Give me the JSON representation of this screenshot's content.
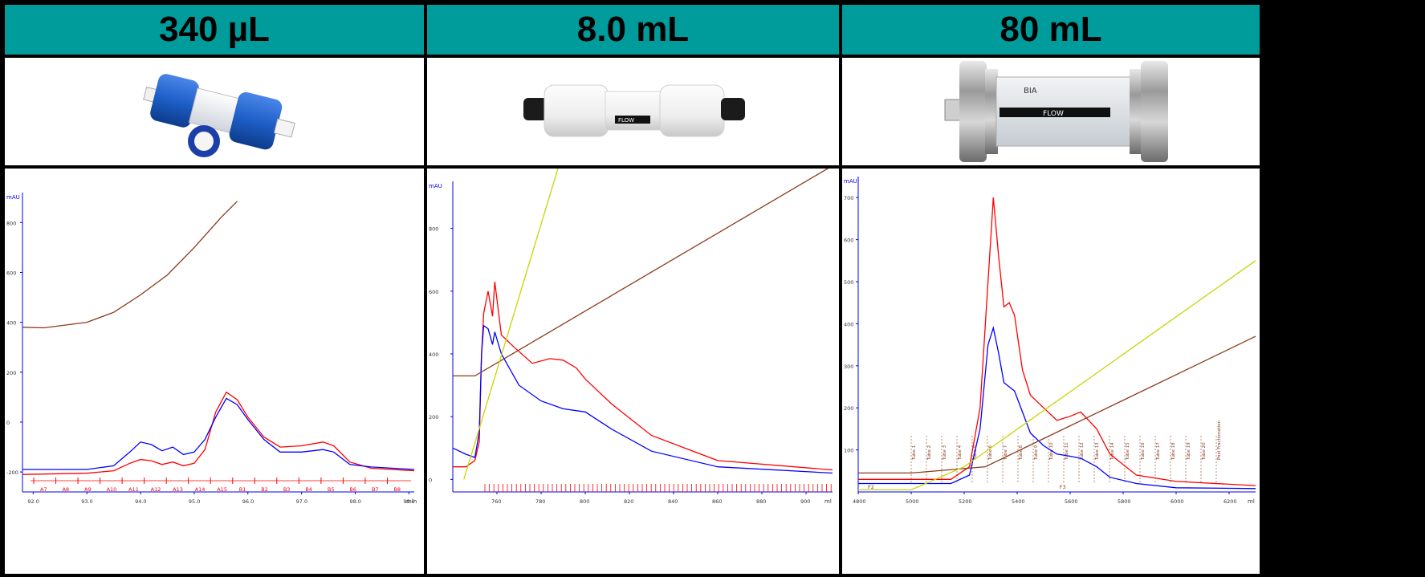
{
  "colors": {
    "header_bg": "#009B9B",
    "red": "#ff0000",
    "blue": "#0000ff",
    "brown": "#8b3a1a",
    "yellowgreen": "#c8d400",
    "axis": "#0000ee"
  },
  "columns": [
    {
      "label": "340 µL",
      "image_icon": "small-blue-column-icon"
    },
    {
      "label": "8.0 mL",
      "image_icon": "white-column-icon"
    },
    {
      "label": "80 mL",
      "image_icon": "steel-column-icon"
    }
  ],
  "photos": {
    "p2_label": "FLOW",
    "p3_label": "FLOW",
    "p3_brand": "BIA"
  },
  "chart_data": [
    {
      "type": "line",
      "yunit": "mAU",
      "xunit": "min",
      "x_ticks": [
        "92.0",
        "93.0",
        "94.0",
        "95.0",
        "96.0",
        "97.0",
        "98.0",
        "99.0"
      ],
      "y_ticks": [
        "-200",
        "0",
        "200",
        "400",
        "600",
        "800"
      ],
      "xlim": [
        91.8,
        99.1
      ],
      "ylim": [
        -280,
        920
      ],
      "fractions": [
        "A7",
        "A8",
        "A9",
        "A10",
        "A11",
        "A12",
        "A13",
        "A14",
        "A15",
        "B1",
        "B2",
        "B3",
        "B4",
        "B5",
        "B6",
        "B7",
        "B8"
      ],
      "series": [
        {
          "color": "red",
          "x": [
            91.8,
            93.0,
            93.5,
            93.8,
            94.0,
            94.2,
            94.4,
            94.6,
            94.8,
            95.0,
            95.2,
            95.4,
            95.6,
            95.8,
            96.0,
            96.3,
            96.6,
            97.0,
            97.4,
            97.6,
            97.9,
            98.3,
            99.1
          ],
          "y": [
            -210,
            -205,
            -195,
            -165,
            -150,
            -155,
            -170,
            -160,
            -175,
            -165,
            -110,
            40,
            120,
            90,
            20,
            -60,
            -100,
            -95,
            -80,
            -95,
            -160,
            -185,
            -195
          ]
        },
        {
          "color": "blue",
          "x": [
            91.8,
            93.0,
            93.5,
            93.8,
            94.0,
            94.2,
            94.4,
            94.6,
            94.8,
            95.0,
            95.2,
            95.4,
            95.6,
            95.8,
            96.0,
            96.3,
            96.6,
            97.0,
            97.4,
            97.6,
            97.9,
            98.3,
            99.1
          ],
          "y": [
            -190,
            -190,
            -175,
            -120,
            -80,
            -90,
            -115,
            -100,
            -130,
            -120,
            -70,
            20,
            95,
            70,
            10,
            -70,
            -120,
            -120,
            -110,
            -120,
            -170,
            -180,
            -190
          ]
        },
        {
          "color": "brown",
          "x": [
            91.8,
            92.2,
            93.0,
            93.5,
            94.0,
            94.5,
            95.0,
            95.5,
            95.8
          ],
          "y": [
            380,
            378,
            400,
            440,
            510,
            590,
            700,
            820,
            885
          ]
        }
      ]
    },
    {
      "type": "line",
      "yunit": "mAU",
      "xunit": "ml",
      "x_ticks": [
        "760",
        "780",
        "800",
        "820",
        "840",
        "860",
        "880",
        "900"
      ],
      "y_ticks": [
        "0",
        "200",
        "400",
        "600",
        "800"
      ],
      "xlim": [
        740,
        912
      ],
      "ylim": [
        -40,
        950
      ],
      "series": [
        {
          "color": "red",
          "x": [
            740,
            746,
            750,
            752,
            753,
            754,
            756,
            758,
            759,
            762,
            768,
            776,
            784,
            790,
            796,
            800,
            812,
            830,
            860,
            912
          ],
          "y": [
            40,
            40,
            60,
            120,
            400,
            530,
            600,
            520,
            630,
            460,
            420,
            370,
            385,
            380,
            355,
            320,
            240,
            140,
            60,
            30
          ]
        },
        {
          "color": "blue",
          "x": [
            740,
            746,
            750,
            752,
            753,
            754,
            756,
            758,
            759,
            762,
            770,
            780,
            790,
            800,
            812,
            830,
            860,
            912
          ],
          "y": [
            100,
            80,
            70,
            150,
            400,
            490,
            480,
            430,
            470,
            400,
            300,
            250,
            225,
            215,
            160,
            90,
            40,
            20
          ]
        },
        {
          "color": "brown",
          "x": [
            740,
            750,
            912
          ],
          "y": [
            330,
            330,
            1000
          ]
        },
        {
          "color": "yellowgreen",
          "x": [
            745,
            788
          ],
          "y": [
            0,
            1000
          ]
        }
      ]
    },
    {
      "type": "line",
      "yunit": "mAU",
      "xunit": "ml",
      "x_ticks": [
        "4800",
        "5000",
        "5200",
        "5400",
        "5600",
        "5800",
        "6000",
        "6200"
      ],
      "y_ticks": [
        "100",
        "200",
        "300",
        "400",
        "500",
        "600",
        "700"
      ],
      "xlim": [
        4800,
        6300
      ],
      "ylim": [
        0,
        750
      ],
      "fractions": [
        "Tube 1",
        "Tube 2",
        "Tube 3",
        "Tube 4",
        "Tube 5",
        "Tube 6",
        "Tube 7",
        "Tube 8",
        "Tube 9",
        "Tube 10",
        "Tube 11",
        "Tube 12",
        "Tube 13",
        "Tube 14",
        "Tube 15",
        "Tube 16",
        "Tube 17",
        "Tube 18",
        "Tube 19",
        "Tube 20",
        "Post Fractionation"
      ],
      "fraction_markers": [
        "F2",
        "F3"
      ],
      "series": [
        {
          "color": "red",
          "x": [
            4800,
            5150,
            5220,
            5260,
            5290,
            5310,
            5330,
            5350,
            5370,
            5390,
            5420,
            5450,
            5500,
            5550,
            5600,
            5640,
            5700,
            5750,
            5850,
            6000,
            6300
          ],
          "y": [
            30,
            30,
            60,
            200,
            500,
            700,
            560,
            440,
            450,
            420,
            290,
            230,
            200,
            170,
            180,
            190,
            150,
            90,
            40,
            25,
            15
          ]
        },
        {
          "color": "blue",
          "x": [
            4800,
            5150,
            5220,
            5260,
            5290,
            5310,
            5330,
            5350,
            5370,
            5390,
            5420,
            5450,
            5500,
            5550,
            5600,
            5640,
            5700,
            5750,
            5850,
            6000,
            6300
          ],
          "y": [
            20,
            20,
            40,
            150,
            350,
            390,
            330,
            260,
            250,
            240,
            190,
            140,
            110,
            90,
            85,
            80,
            60,
            35,
            20,
            10,
            8
          ]
        },
        {
          "color": "brown",
          "x": [
            4800,
            5000,
            5280,
            6300
          ],
          "y": [
            45,
            45,
            60,
            370
          ]
        },
        {
          "color": "yellowgreen",
          "x": [
            4800,
            5000,
            5200,
            6300
          ],
          "y": [
            5,
            5,
            60,
            550
          ]
        }
      ]
    }
  ]
}
